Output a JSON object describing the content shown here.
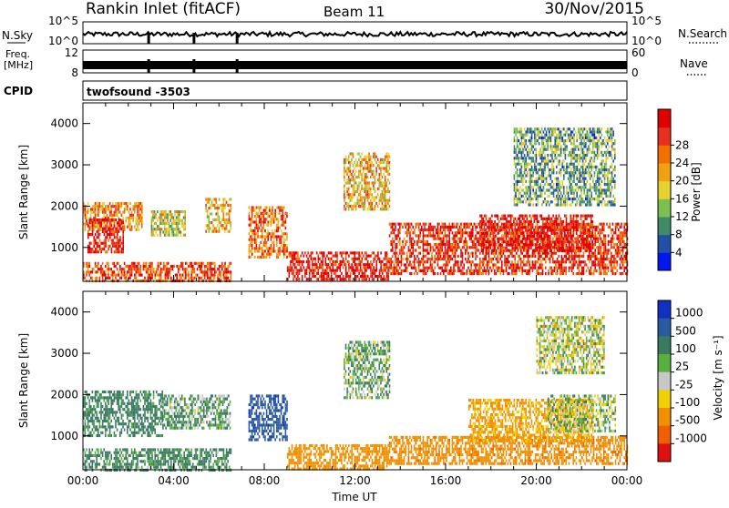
{
  "header": {
    "station": "Rankin Inlet (fitACF)",
    "beam": "Beam 11",
    "date": "30/Nov/2015"
  },
  "status_panels": {
    "nsky_label": "N.Sky",
    "nsky_ticks": [
      "10^5",
      "10^0"
    ],
    "nsearch_label": "N.Search",
    "nsearch_ticks": [
      "10^5",
      "10^0"
    ],
    "freq_label": "Freq.",
    "freq_unit": "[MHz]",
    "freq_ticks": [
      "12",
      "8"
    ],
    "nave_label": "Nave",
    "nave_ticks": [
      "60",
      "0"
    ],
    "cpid_label": "CPID",
    "cpid_value": "twofsound -3503"
  },
  "colors": {
    "power_scale": [
      "#0018f0",
      "#2050a8",
      "#3f8a6a",
      "#7cc050",
      "#e8d030",
      "#f0a010",
      "#f07000",
      "#e83020",
      "#e00000"
    ],
    "velocity_scale": [
      "#1030c0",
      "#2a5aa0",
      "#3a7a60",
      "#58b040",
      "#c8c8c8",
      "#f0d000",
      "#f09000",
      "#f06000",
      "#e01010"
    ]
  },
  "chart_data": [
    {
      "type": "heatmap",
      "name": "power",
      "ylabel": "Slant Range [km]",
      "yticks": [
        "1000",
        "2000",
        "3000",
        "4000"
      ],
      "ylim": [
        180,
        4500
      ],
      "xlim": [
        "00:00",
        "24:00"
      ],
      "colorbar_label": "Power [dB]",
      "colorbar_ticks": [
        "4",
        "8",
        "12",
        "16",
        "20",
        "24",
        "28"
      ],
      "colorbar_range": [
        0,
        30
      ],
      "regions": [
        {
          "t0": 0.0,
          "t1": 2.6,
          "r0": 1400,
          "r1": 2100,
          "value": 20
        },
        {
          "t0": 0.2,
          "t1": 1.8,
          "r0": 900,
          "r1": 1700,
          "value": 28
        },
        {
          "t0": 0.0,
          "t1": 6.5,
          "r0": 200,
          "r1": 650,
          "value": 24
        },
        {
          "t0": 3.0,
          "t1": 4.5,
          "r0": 1300,
          "r1": 1900,
          "value": 14
        },
        {
          "t0": 5.4,
          "t1": 6.5,
          "r0": 1400,
          "r1": 2200,
          "value": 18
        },
        {
          "t0": 7.3,
          "t1": 9.0,
          "r0": 800,
          "r1": 2000,
          "value": 22
        },
        {
          "t0": 9.0,
          "t1": 13.5,
          "r0": 200,
          "r1": 900,
          "value": 28
        },
        {
          "t0": 11.5,
          "t1": 13.5,
          "r0": 1900,
          "r1": 3300,
          "value": 18
        },
        {
          "t0": 13.5,
          "t1": 24.0,
          "r0": 400,
          "r1": 1600,
          "value": 26
        },
        {
          "t0": 17.5,
          "t1": 22.5,
          "r0": 900,
          "r1": 1800,
          "value": 28
        },
        {
          "t0": 19.0,
          "t1": 23.5,
          "r0": 2000,
          "r1": 3900,
          "value": 10
        }
      ]
    },
    {
      "type": "heatmap",
      "name": "velocity",
      "ylabel": "Slant Range [km]",
      "yticks": [
        "1000",
        "2000",
        "3000",
        "4000"
      ],
      "ylim": [
        180,
        4500
      ],
      "xlim": [
        "00:00",
        "24:00"
      ],
      "xlabel": "Time UT",
      "xticks": [
        "00:00",
        "04:00",
        "08:00",
        "12:00",
        "16:00",
        "20:00",
        "00:00"
      ],
      "colorbar_label": "Velocity [m s⁻¹]",
      "colorbar_ticks": [
        "1000",
        "500",
        "100",
        "25",
        "-25",
        "-100",
        "-500",
        "-1000"
      ],
      "regions": [
        {
          "t0": 0.0,
          "t1": 3.5,
          "r0": 1000,
          "r1": 2100,
          "value": 200
        },
        {
          "t0": 0.0,
          "t1": 6.5,
          "r0": 200,
          "r1": 700,
          "value": 150
        },
        {
          "t0": 3.5,
          "t1": 6.5,
          "r0": 1200,
          "r1": 2000,
          "value": 100
        },
        {
          "t0": 7.3,
          "t1": 9.0,
          "r0": 900,
          "r1": 2000,
          "value": 900
        },
        {
          "t0": 9.0,
          "t1": 13.5,
          "r0": 200,
          "r1": 800,
          "value": -300
        },
        {
          "t0": 11.5,
          "t1": 13.5,
          "r0": 1900,
          "r1": 3300,
          "value": 80
        },
        {
          "t0": 13.5,
          "t1": 24.0,
          "r0": 300,
          "r1": 1000,
          "value": -400
        },
        {
          "t0": 17.0,
          "t1": 22.5,
          "r0": 900,
          "r1": 1900,
          "value": -150
        },
        {
          "t0": 20.5,
          "t1": 23.5,
          "r0": 1100,
          "r1": 2000,
          "value": 40
        },
        {
          "t0": 20.0,
          "t1": 23.0,
          "r0": 2500,
          "r1": 3900,
          "value": 0
        }
      ]
    }
  ]
}
